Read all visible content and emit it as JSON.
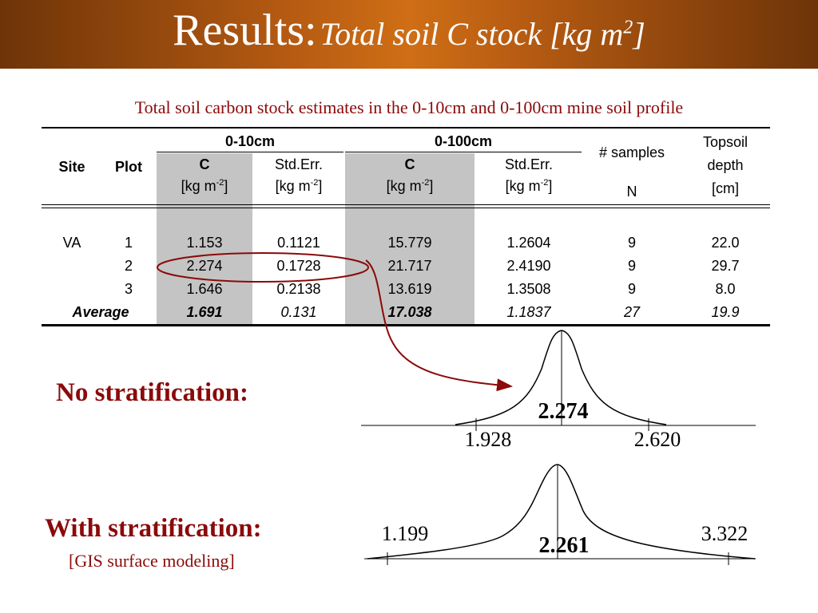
{
  "header": {
    "title_main": "Results:",
    "title_sub": "Total soil C stock [kg m",
    "title_sup": "2",
    "title_end": "]",
    "bg_color": "#b45a12"
  },
  "caption": "Total soil carbon stock estimates in the 0-10cm and 0-100cm mine soil profile",
  "table": {
    "group_0_10": "0-10cm",
    "group_0_100": "0-100cm",
    "col_site": "Site",
    "col_plot": "Plot",
    "col_c": "C",
    "col_stderr": "Std.Err.",
    "unit_prefix": "[kg m",
    "unit_sup": "-2",
    "unit_suffix": "]",
    "col_samples": "# samples",
    "col_n": "N",
    "col_topsoil_1": "Topsoil",
    "col_topsoil_2": "depth",
    "col_topsoil_3": "[cm]",
    "rows": [
      {
        "site": "VA",
        "plot": "1",
        "c10": "1.153",
        "se10": "0.1121",
        "c100": "15.779",
        "se100": "1.2604",
        "n": "9",
        "depth": "22.0"
      },
      {
        "site": "",
        "plot": "2",
        "c10": "2.274",
        "se10": "0.1728",
        "c100": "21.717",
        "se100": "2.4190",
        "n": "9",
        "depth": "29.7"
      },
      {
        "site": "",
        "plot": "3",
        "c10": "1.646",
        "se10": "0.2138",
        "c100": "13.619",
        "se100": "1.3508",
        "n": "9",
        "depth": "8.0"
      }
    ],
    "average": {
      "label": "Average",
      "c10": "1.691",
      "se10": "0.131",
      "c100": "17.038",
      "se100": "1.1837",
      "n": "27",
      "depth": "19.9"
    },
    "highlight_color": "#c4c4c4"
  },
  "no_strat": {
    "label": "No stratification:",
    "center": "2.274",
    "low": "1.928",
    "high": "2.620"
  },
  "with_strat": {
    "label": "With stratification:",
    "sublabel": "[GIS surface modeling]",
    "center": "2.261",
    "low": "1.199",
    "high": "3.322"
  },
  "accent_color": "#8b0a0a"
}
